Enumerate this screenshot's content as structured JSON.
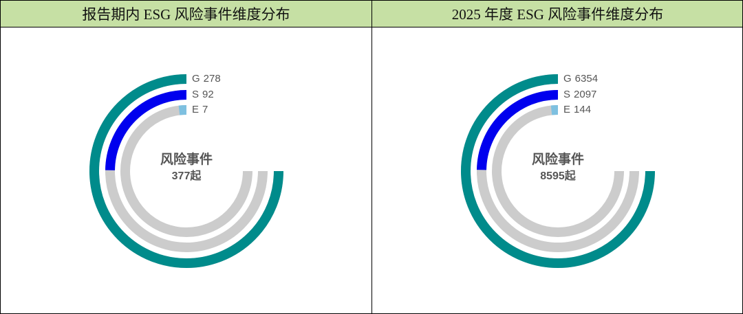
{
  "chart_data": [
    {
      "type": "radial-bar",
      "title": "报告期内 ESG 风险事件维度分布",
      "center_title": "风险事件",
      "center_text": "377起",
      "categories": [
        "G",
        "S",
        "E"
      ],
      "values": [
        278,
        92,
        7
      ],
      "colors": [
        "#008b8b",
        "#0000ee",
        "#7ec0e0"
      ],
      "track_color": "#cccccc"
    },
    {
      "type": "radial-bar",
      "title": "2025 年度 ESG 风险事件维度分布",
      "center_title": "风险事件",
      "center_text": "8595起",
      "categories": [
        "G",
        "S",
        "E"
      ],
      "values": [
        6354,
        2097,
        144
      ],
      "colors": [
        "#008b8b",
        "#0000ee",
        "#7ec0e0"
      ],
      "track_color": "#cccccc"
    }
  ]
}
